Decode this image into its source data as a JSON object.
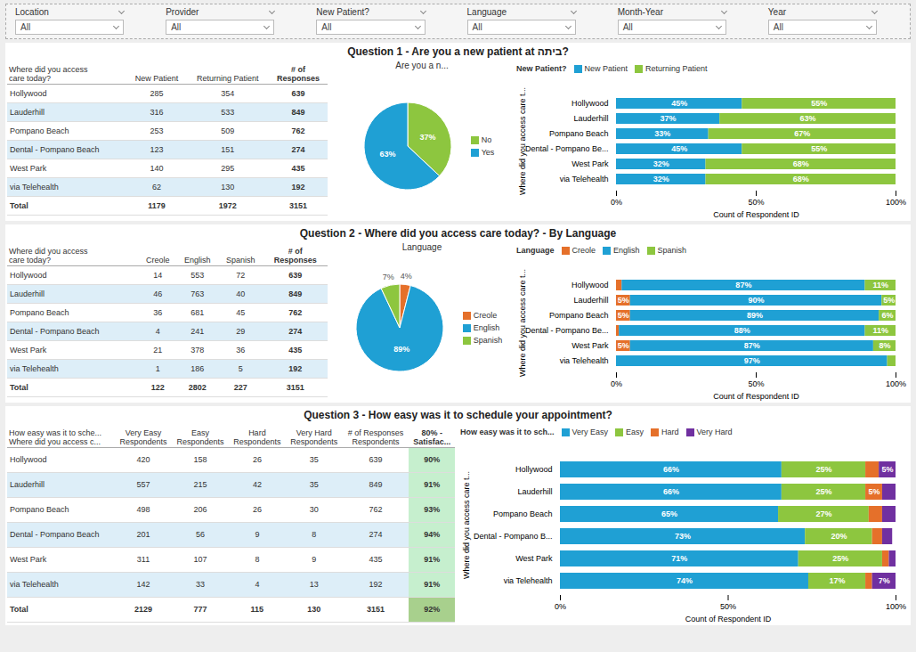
{
  "chart_data": [
    {
      "type": "filter",
      "categories": [
        "Location",
        "Provider",
        "New Patient?",
        "Language",
        "Month-Year",
        "Year"
      ],
      "annotations": [
        "All",
        "All",
        "All",
        "All",
        "All",
        "All"
      ]
    },
    {
      "type": "table",
      "title": "Question 1 - Are you a new patient at ביתה?",
      "ylabel": "Where did you access\ncare today?",
      "categories": [
        "Hollywood",
        "Lauderhill",
        "Pompano Beach",
        "Dental - Pompano Beach",
        "West Park",
        "via Telehealth",
        "Total"
      ],
      "series": [
        {
          "name": "New Patient",
          "values": [
            285,
            316,
            253,
            123,
            140,
            62,
            1179
          ]
        },
        {
          "name": "Returning Patient",
          "values": [
            354,
            533,
            509,
            151,
            295,
            130,
            1972
          ]
        },
        {
          "name": "# of\nResponses",
          "values": [
            639,
            849,
            762,
            274,
            435,
            192,
            3151
          ]
        }
      ]
    },
    {
      "type": "pie",
      "title": "Are you a n...",
      "categories": [
        "No",
        "Yes"
      ],
      "values": [
        37,
        63
      ],
      "value_labels": [
        "37%",
        "63%"
      ],
      "colors": [
        "#8dc63f",
        "#1fa0d4"
      ],
      "data_labels": true,
      "legend": "right"
    },
    {
      "type": "bar",
      "orientation": "horizontal",
      "stacked": true,
      "title": "New Patient?",
      "xlabel": "Count of Respondent ID",
      "ylabel": "Where did you access care t...",
      "categories": [
        "Hollywood",
        "Lauderhill",
        "Pompano Beach",
        "Dental - Pompano Be...",
        "West Park",
        "via Telehealth"
      ],
      "series": [
        {
          "name": "New Patient",
          "color": "#1fa0d4",
          "values": [
            45,
            37,
            33,
            45,
            32,
            32
          ],
          "value_labels": [
            "45%",
            "37%",
            "33%",
            "45%",
            "32%",
            "32%"
          ]
        },
        {
          "name": "Returning Patient",
          "color": "#8dc63f",
          "values": [
            55,
            63,
            67,
            55,
            68,
            68
          ],
          "value_labels": [
            "55%",
            "63%",
            "67%",
            "55%",
            "68%",
            "68%"
          ]
        }
      ],
      "xlim": [
        0,
        100
      ],
      "xticks": [
        {
          "value": 0,
          "label": "0%"
        },
        {
          "value": 50,
          "label": "50%"
        },
        {
          "value": 100,
          "label": "100%"
        }
      ],
      "grid": false,
      "data_labels": true,
      "legend": "top"
    },
    {
      "type": "table",
      "title": "Question 2 - Where did you access care today? - By Language",
      "ylabel": "Where did you access\ncare today?",
      "categories": [
        "Hollywood",
        "Lauderhill",
        "Pompano Beach",
        "Dental - Pompano Beach",
        "West Park",
        "via Telehealth",
        "Total"
      ],
      "series": [
        {
          "name": "Creole",
          "values": [
            14,
            46,
            36,
            4,
            21,
            1,
            122
          ]
        },
        {
          "name": "English",
          "values": [
            553,
            763,
            681,
            241,
            378,
            186,
            2802
          ]
        },
        {
          "name": "Spanish",
          "values": [
            72,
            40,
            45,
            29,
            36,
            5,
            227
          ]
        },
        {
          "name": "# of\nResponses",
          "values": [
            639,
            849,
            762,
            274,
            435,
            192,
            3151
          ]
        }
      ]
    },
    {
      "type": "pie",
      "title": "Language",
      "categories": [
        "Creole",
        "English",
        "Spanish"
      ],
      "values": [
        4,
        89,
        7
      ],
      "value_labels": [
        "4%",
        "89%",
        "7%"
      ],
      "colors": [
        "#e5702a",
        "#1fa0d4",
        "#8dc63f"
      ],
      "data_labels": true,
      "legend": "right"
    },
    {
      "type": "bar",
      "orientation": "horizontal",
      "stacked": true,
      "title": "Language",
      "xlabel": "Count of Respondent ID",
      "ylabel": "Where did you access care t...",
      "categories": [
        "Hollywood",
        "Lauderhill",
        "Pompano Beach",
        "Dental - Pompano Be...",
        "West Park",
        "via Telehealth"
      ],
      "series": [
        {
          "name": "Creole",
          "color": "#e5702a",
          "values": [
            2,
            5,
            5,
            1,
            5,
            0
          ],
          "value_labels": [
            null,
            "5%",
            "5%",
            null,
            "5%",
            null
          ]
        },
        {
          "name": "English",
          "color": "#1fa0d4",
          "values": [
            87,
            90,
            89,
            88,
            87,
            97
          ],
          "value_labels": [
            "87%",
            "90%",
            "89%",
            "88%",
            "87%",
            "97%"
          ]
        },
        {
          "name": "Spanish",
          "color": "#8dc63f",
          "values": [
            11,
            5,
            6,
            11,
            8,
            3
          ],
          "value_labels": [
            "11%",
            "5%",
            "6%",
            "11%",
            "8%",
            null
          ]
        }
      ],
      "xlim": [
        0,
        100
      ],
      "xticks": [
        {
          "value": 0,
          "label": "0%"
        },
        {
          "value": 50,
          "label": "50%"
        },
        {
          "value": 100,
          "label": "100%"
        }
      ],
      "grid": false,
      "data_labels": true,
      "legend": "top"
    },
    {
      "type": "table",
      "title": "Question 3 - How easy was it to schedule your appointment?",
      "ylabel": "How easy was it to sche...\nWhere did you access c...",
      "categories": [
        "Hollywood",
        "Lauderhill",
        "Pompano Beach",
        "Dental - Pompano Beach",
        "West Park",
        "via Telehealth",
        "Total"
      ],
      "series": [
        {
          "name": "Very Easy\nRespondents",
          "values": [
            420,
            557,
            498,
            201,
            311,
            142,
            2129
          ]
        },
        {
          "name": "Easy\nRespondents",
          "values": [
            158,
            215,
            206,
            56,
            107,
            33,
            777
          ]
        },
        {
          "name": "Hard\nRespondents",
          "values": [
            26,
            42,
            26,
            9,
            8,
            4,
            115
          ]
        },
        {
          "name": "Very Hard\nRespondents",
          "values": [
            35,
            35,
            30,
            8,
            9,
            13,
            130
          ]
        },
        {
          "name": "# of Responses\nRespondents",
          "values": [
            639,
            849,
            762,
            274,
            435,
            192,
            3151
          ]
        },
        {
          "name": "80% -\nSatisfac...",
          "values": [
            90,
            91,
            93,
            94,
            91,
            91,
            92
          ],
          "value_labels": [
            "90%",
            "91%",
            "93%",
            "94%",
            "91%",
            "91%",
            "92%"
          ],
          "colors": [
            "#c6efce",
            "#c6efce",
            "#c6efce",
            "#c6efce",
            "#c6efce",
            "#c6efce",
            "#a8d08d"
          ]
        }
      ]
    },
    {
      "type": "bar",
      "orientation": "horizontal",
      "stacked": true,
      "title": "How easy was it to sch...",
      "xlabel": "Count of Respondent ID",
      "ylabel": "Where did you access care t...",
      "categories": [
        "Hollywood",
        "Lauderhill",
        "Pompano Beach",
        "Dental - Pompano B...",
        "West Park",
        "via Telehealth"
      ],
      "series": [
        {
          "name": "Very Easy",
          "color": "#1fa0d4",
          "values": [
            66,
            66,
            65,
            73,
            71,
            74
          ],
          "value_labels": [
            "66%",
            "66%",
            "65%",
            "73%",
            "71%",
            "74%"
          ]
        },
        {
          "name": "Easy",
          "color": "#8dc63f",
          "values": [
            25,
            25,
            27,
            20,
            25,
            17
          ],
          "value_labels": [
            "25%",
            "25%",
            "27%",
            "20%",
            "25%",
            "17%"
          ]
        },
        {
          "name": "Hard",
          "color": "#e5702a",
          "values": [
            4,
            5,
            4,
            3,
            2,
            2
          ],
          "value_labels": [
            null,
            "5%",
            null,
            null,
            null,
            null
          ]
        },
        {
          "name": "Very Hard",
          "color": "#7030a0",
          "values": [
            5,
            4,
            4,
            3,
            2,
            7
          ],
          "value_labels": [
            "5%",
            null,
            null,
            null,
            null,
            "7%"
          ]
        }
      ],
      "xlim": [
        0,
        100
      ],
      "xticks": [
        {
          "value": 0,
          "label": "0%"
        },
        {
          "value": 50,
          "label": "50%"
        },
        {
          "value": 100,
          "label": "100%"
        }
      ],
      "grid": false,
      "data_labels": true,
      "legend": "top"
    }
  ]
}
